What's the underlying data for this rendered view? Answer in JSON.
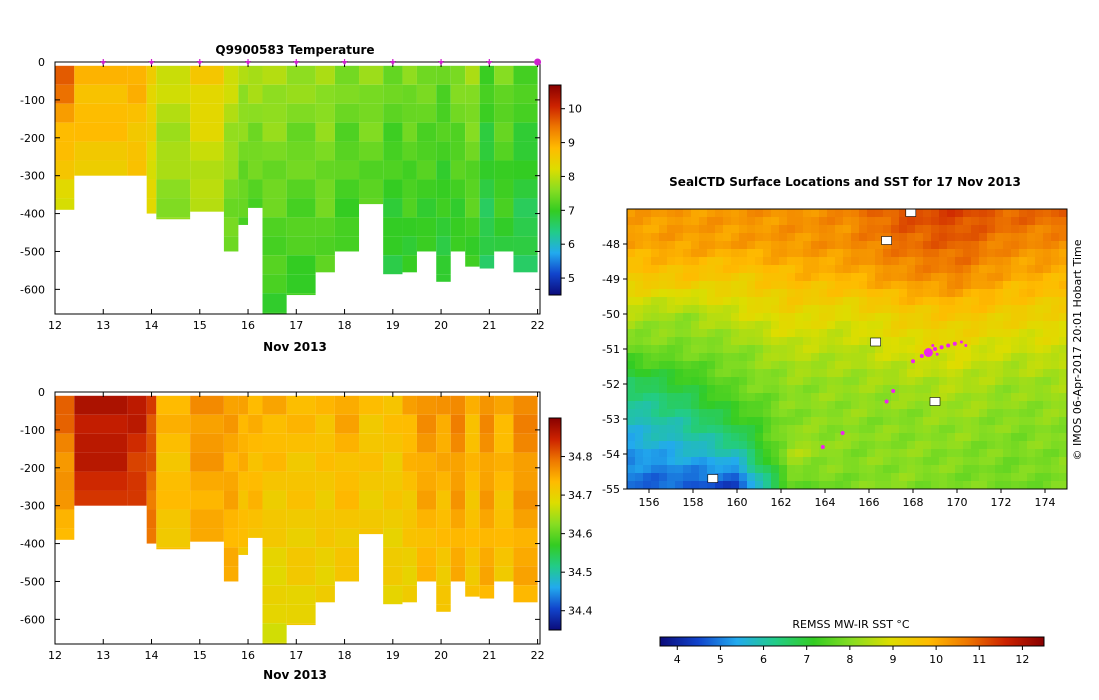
{
  "chart_data": [
    {
      "id": "temperature-section",
      "type": "heatmap",
      "title": "Q9900583  Temperature",
      "xlabel": "Nov 2013",
      "x_ticks": [
        "12",
        "13",
        "14",
        "15",
        "16",
        "17",
        "18",
        "19",
        "20",
        "21",
        "22"
      ],
      "y_ticks": [
        "0",
        "-100",
        "-200",
        "-300",
        "-400",
        "-500",
        "-600"
      ],
      "xlim": [
        12,
        22.05
      ],
      "ylim": [
        -665,
        0
      ],
      "profile_markers_x": [
        13,
        14,
        15,
        16,
        17,
        18,
        19,
        20,
        21,
        22
      ],
      "colorbar": {
        "range": [
          4.5,
          10.7
        ],
        "ticks": [
          "5",
          "6",
          "7",
          "8",
          "9",
          "10"
        ],
        "colormap": [
          "#0b0b7a",
          "#1144cc",
          "#22aaee",
          "#22cc88",
          "#33cc22",
          "#88dd22",
          "#dddd00",
          "#ffbb00",
          "#ee7700",
          "#cc2200",
          "#880000"
        ]
      },
      "profiles": [
        {
          "x0": 12.0,
          "x1": 12.4,
          "depth": 390,
          "top": 10,
          "bottom": 8.2
        },
        {
          "x0": 12.4,
          "x1": 13.5,
          "depth": 300,
          "top": 9.0,
          "bottom": 8.6
        },
        {
          "x0": 13.5,
          "x1": 13.9,
          "depth": 300,
          "top": 9.0,
          "bottom": 8.6
        },
        {
          "x0": 13.9,
          "x1": 14.1,
          "depth": 400,
          "top": 8.6,
          "bottom": 8.2
        },
        {
          "x0": 14.1,
          "x1": 14.8,
          "depth": 415,
          "top": 8.2,
          "bottom": 7.6
        },
        {
          "x0": 14.8,
          "x1": 15.5,
          "depth": 395,
          "top": 8.8,
          "bottom": 7.8
        },
        {
          "x0": 15.5,
          "x1": 15.8,
          "depth": 500,
          "top": 8.3,
          "bottom": 7.3
        },
        {
          "x0": 15.8,
          "x1": 16.0,
          "depth": 430,
          "top": 8.0,
          "bottom": 7.2
        },
        {
          "x0": 16.0,
          "x1": 16.3,
          "depth": 385,
          "top": 8.0,
          "bottom": 7.2
        },
        {
          "x0": 16.3,
          "x1": 16.8,
          "depth": 665,
          "top": 8.0,
          "bottom": 7.0
        },
        {
          "x0": 16.8,
          "x1": 17.4,
          "depth": 615,
          "top": 7.8,
          "bottom": 7.0
        },
        {
          "x0": 17.4,
          "x1": 17.8,
          "depth": 555,
          "top": 7.9,
          "bottom": 7.2
        },
        {
          "x0": 17.8,
          "x1": 18.3,
          "depth": 500,
          "top": 7.6,
          "bottom": 7.0
        },
        {
          "x0": 18.3,
          "x1": 18.8,
          "depth": 375,
          "top": 7.8,
          "bottom": 7.2
        },
        {
          "x0": 18.8,
          "x1": 19.2,
          "depth": 560,
          "top": 7.5,
          "bottom": 6.8
        },
        {
          "x0": 19.2,
          "x1": 19.5,
          "depth": 555,
          "top": 7.7,
          "bottom": 6.9
        },
        {
          "x0": 19.5,
          "x1": 19.9,
          "depth": 500,
          "top": 7.6,
          "bottom": 6.9
        },
        {
          "x0": 19.9,
          "x1": 20.2,
          "depth": 580,
          "top": 7.4,
          "bottom": 6.8
        },
        {
          "x0": 20.2,
          "x1": 20.5,
          "depth": 500,
          "top": 7.7,
          "bottom": 6.9
        },
        {
          "x0": 20.5,
          "x1": 20.8,
          "depth": 540,
          "top": 7.9,
          "bottom": 7.0
        },
        {
          "x0": 20.8,
          "x1": 21.1,
          "depth": 545,
          "top": 7.2,
          "bottom": 6.6
        },
        {
          "x0": 21.1,
          "x1": 21.5,
          "depth": 500,
          "top": 7.6,
          "bottom": 6.9
        },
        {
          "x0": 21.5,
          "x1": 22.0,
          "depth": 555,
          "top": 7.3,
          "bottom": 6.6
        }
      ]
    },
    {
      "id": "salinity-section",
      "type": "heatmap",
      "title": "",
      "xlabel": "Nov 2013",
      "x_ticks": [
        "12",
        "13",
        "14",
        "15",
        "16",
        "17",
        "18",
        "19",
        "20",
        "21",
        "22"
      ],
      "y_ticks": [
        "0",
        "-100",
        "-200",
        "-300",
        "-400",
        "-500",
        "-600"
      ],
      "xlim": [
        12,
        22.05
      ],
      "ylim": [
        -665,
        0
      ],
      "colorbar": {
        "range": [
          34.35,
          34.9
        ],
        "ticks": [
          "34.4",
          "34.5",
          "34.6",
          "34.7",
          "34.8"
        ],
        "colormap": [
          "#0b0b7a",
          "#1144cc",
          "#22aaee",
          "#22cc88",
          "#33cc22",
          "#88dd22",
          "#dddd00",
          "#ffbb00",
          "#ee7700",
          "#cc2200",
          "#880000"
        ]
      },
      "profiles": [
        {
          "x0": 12.0,
          "x1": 12.4,
          "depth": 390,
          "top": 34.82,
          "bottom": 34.74
        },
        {
          "x0": 12.4,
          "x1": 13.5,
          "depth": 300,
          "top": 34.88,
          "bottom": 34.84
        },
        {
          "x0": 13.5,
          "x1": 13.9,
          "depth": 300,
          "top": 34.87,
          "bottom": 34.82
        },
        {
          "x0": 13.9,
          "x1": 14.1,
          "depth": 400,
          "top": 34.84,
          "bottom": 34.78
        },
        {
          "x0": 14.1,
          "x1": 14.8,
          "depth": 415,
          "top": 34.74,
          "bottom": 34.72
        },
        {
          "x0": 14.8,
          "x1": 15.5,
          "depth": 395,
          "top": 34.78,
          "bottom": 34.74
        },
        {
          "x0": 15.5,
          "x1": 15.8,
          "depth": 500,
          "top": 34.76,
          "bottom": 34.74
        },
        {
          "x0": 15.8,
          "x1": 16.0,
          "depth": 430,
          "top": 34.76,
          "bottom": 34.72
        },
        {
          "x0": 16.0,
          "x1": 16.3,
          "depth": 385,
          "top": 34.74,
          "bottom": 34.73
        },
        {
          "x0": 16.3,
          "x1": 16.8,
          "depth": 665,
          "top": 34.76,
          "bottom": 34.68
        },
        {
          "x0": 16.8,
          "x1": 17.4,
          "depth": 615,
          "top": 34.74,
          "bottom": 34.7
        },
        {
          "x0": 17.4,
          "x1": 17.8,
          "depth": 555,
          "top": 34.74,
          "bottom": 34.7
        },
        {
          "x0": 17.8,
          "x1": 18.3,
          "depth": 500,
          "top": 34.76,
          "bottom": 34.71
        },
        {
          "x0": 18.3,
          "x1": 18.8,
          "depth": 375,
          "top": 34.73,
          "bottom": 34.71
        },
        {
          "x0": 18.8,
          "x1": 19.2,
          "depth": 560,
          "top": 34.73,
          "bottom": 34.7
        },
        {
          "x0": 19.2,
          "x1": 19.5,
          "depth": 555,
          "top": 34.76,
          "bottom": 34.7
        },
        {
          "x0": 19.5,
          "x1": 19.9,
          "depth": 500,
          "top": 34.78,
          "bottom": 34.73
        },
        {
          "x0": 19.9,
          "x1": 20.2,
          "depth": 580,
          "top": 34.77,
          "bottom": 34.71
        },
        {
          "x0": 20.2,
          "x1": 20.5,
          "depth": 500,
          "top": 34.79,
          "bottom": 34.74
        },
        {
          "x0": 20.5,
          "x1": 20.8,
          "depth": 540,
          "top": 34.74,
          "bottom": 34.72
        },
        {
          "x0": 20.8,
          "x1": 21.1,
          "depth": 545,
          "top": 34.78,
          "bottom": 34.74
        },
        {
          "x0": 21.1,
          "x1": 21.5,
          "depth": 500,
          "top": 34.75,
          "bottom": 34.72
        },
        {
          "x0": 21.5,
          "x1": 22.0,
          "depth": 555,
          "top": 34.79,
          "bottom": 34.74
        }
      ]
    },
    {
      "id": "sst-map",
      "type": "heatmap",
      "title": "SealCTD Surface Locations and SST for 17 Nov 2013",
      "x_ticks": [
        "156",
        "158",
        "160",
        "162",
        "164",
        "166",
        "168",
        "170",
        "172",
        "174"
      ],
      "y_ticks": [
        "-48",
        "-49",
        "-50",
        "-51",
        "-52",
        "-53",
        "-54",
        "-55"
      ],
      "xlim": [
        155,
        175
      ],
      "ylim": [
        -55,
        -47
      ],
      "side_label": "©  IMOS 06-Apr-2017 20:01 Hobart Time",
      "colorbar": {
        "label": "REMSS MW-IR SST °C",
        "range": [
          3.6,
          12.5
        ],
        "ticks": [
          "4",
          "5",
          "6",
          "7",
          "8",
          "9",
          "10",
          "11",
          "12"
        ],
        "colormap": [
          "#0b0b7a",
          "#1144cc",
          "#22aaee",
          "#22cc88",
          "#33cc22",
          "#88dd22",
          "#dddd00",
          "#ffbb00",
          "#ee7700",
          "#cc2200",
          "#880000"
        ]
      },
      "sst_field": {
        "lon": [
          155,
          157.5,
          160,
          162.5,
          165,
          167.5,
          170,
          172.5,
          175
        ],
        "lat": [
          -47,
          -48,
          -49,
          -50,
          -51,
          -52,
          -53,
          -54,
          -55
        ],
        "values": [
          [
            10.2,
            10.3,
            10.3,
            10.4,
            10.5,
            11.2,
            11.3,
            11.0,
            10.9
          ],
          [
            10.1,
            10.2,
            10.2,
            10.3,
            10.4,
            10.8,
            11.0,
            10.5,
            10.4
          ],
          [
            9.5,
            9.6,
            9.4,
            9.8,
            9.9,
            10.3,
            10.5,
            10.0,
            9.9
          ],
          [
            8.5,
            8.2,
            8.8,
            9.2,
            9.0,
            9.4,
            9.6,
            9.4,
            9.2
          ],
          [
            7.8,
            7.9,
            8.0,
            8.6,
            8.5,
            8.9,
            9.0,
            8.7,
            8.8
          ],
          [
            6.5,
            7.0,
            7.8,
            8.1,
            8.2,
            8.3,
            8.5,
            8.2,
            8.3
          ],
          [
            5.8,
            6.2,
            7.1,
            8.0,
            8.1,
            8.0,
            8.2,
            8.0,
            8.1
          ],
          [
            5.2,
            5.5,
            5.9,
            8.4,
            8.0,
            8.1,
            8.0,
            7.9,
            8.0
          ],
          [
            4.8,
            4.6,
            4.3,
            7.5,
            7.9,
            8.0,
            7.9,
            7.8,
            7.9
          ]
        ]
      },
      "land_masks": [
        {
          "lon": 167.9,
          "lat": -47.1
        },
        {
          "lon": 166.3,
          "lat": -50.8
        },
        {
          "lon": 169.0,
          "lat": -52.5
        },
        {
          "lon": 158.9,
          "lat": -54.7
        },
        {
          "lon": 166.8,
          "lat": -47.9
        }
      ],
      "seal_locations": [
        {
          "lon": 163.9,
          "lat": -53.8,
          "r": 2
        },
        {
          "lon": 164.8,
          "lat": -53.4,
          "r": 2
        },
        {
          "lon": 166.8,
          "lat": -52.5,
          "r": 2
        },
        {
          "lon": 167.1,
          "lat": -52.2,
          "r": 2
        },
        {
          "lon": 168.0,
          "lat": -51.35,
          "r": 2
        },
        {
          "lon": 168.4,
          "lat": -51.2,
          "r": 2
        },
        {
          "lon": 168.7,
          "lat": -51.1,
          "r": 4.5
        },
        {
          "lon": 169.0,
          "lat": -51.0,
          "r": 2
        },
        {
          "lon": 169.3,
          "lat": -50.95,
          "r": 2
        },
        {
          "lon": 169.6,
          "lat": -50.9,
          "r": 2
        },
        {
          "lon": 169.9,
          "lat": -50.85,
          "r": 2
        },
        {
          "lon": 170.2,
          "lat": -50.8,
          "r": 1.5
        },
        {
          "lon": 170.4,
          "lat": -50.9,
          "r": 1.5
        },
        {
          "lon": 169.1,
          "lat": -51.15,
          "r": 1.5
        },
        {
          "lon": 168.9,
          "lat": -50.9,
          "r": 1.5
        }
      ]
    }
  ]
}
